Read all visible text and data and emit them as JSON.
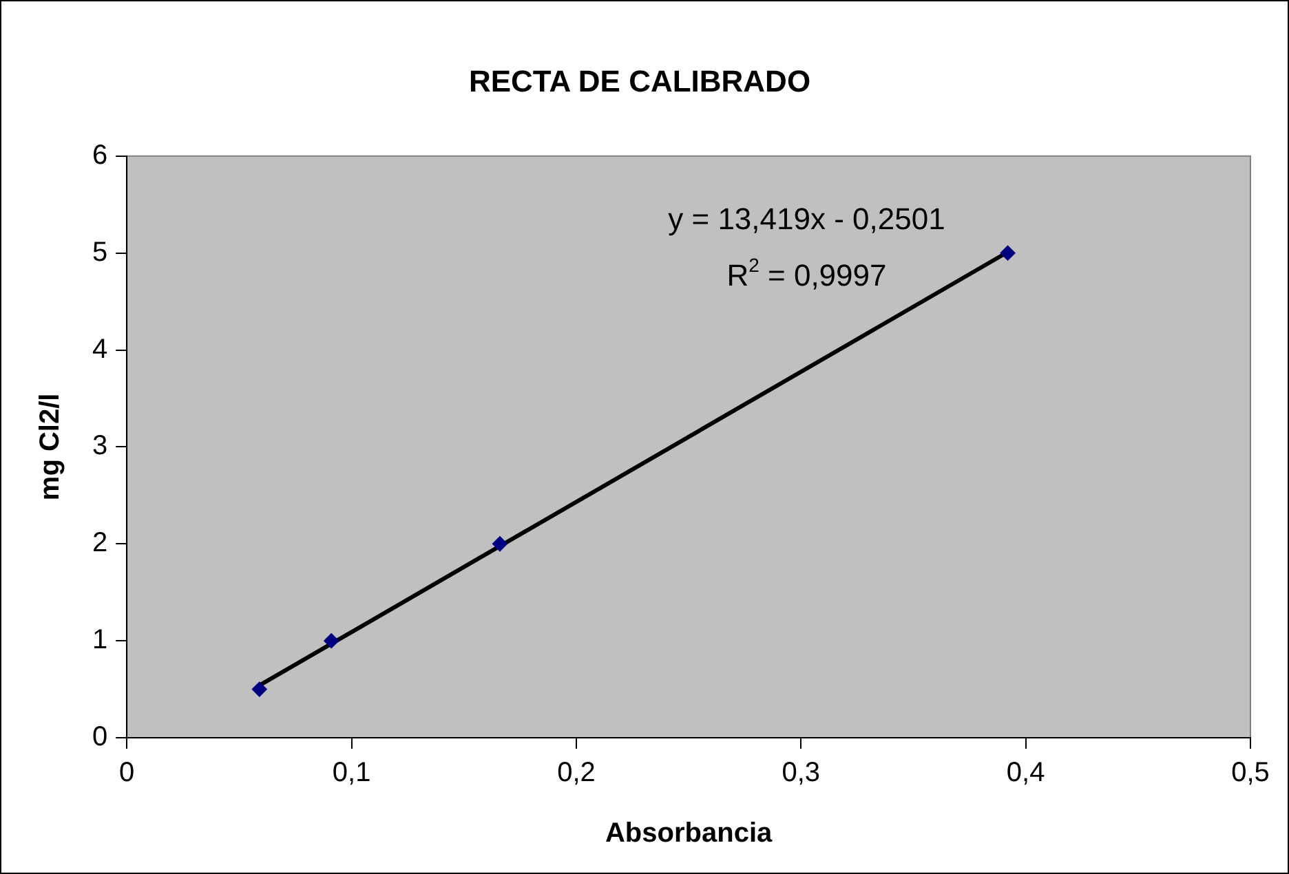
{
  "chart_data": {
    "type": "scatter",
    "title": "RECTA DE CALIBRADO",
    "xlabel": "Absorbancia",
    "ylabel": "mg Cl2/l",
    "series": [
      {
        "type": "scatter",
        "color": "#000080",
        "x": [
          0.059,
          0.091,
          0.166,
          0.392
        ],
        "values": [
          0.5,
          1,
          2,
          5
        ],
        "marker": "diamond"
      },
      {
        "type": "line",
        "color": "#000000",
        "x": [
          0.059,
          0.392
        ],
        "values": [
          0.54,
          5.01
        ],
        "marker": "none"
      }
    ],
    "xlim": [
      0,
      0.5
    ],
    "xticks": [
      0,
      {
        "value": 0.1,
        "label": "0,1"
      },
      {
        "value": 0.2,
        "label": "0,2"
      },
      {
        "value": 0.3,
        "label": "0,3"
      },
      {
        "value": 0.4,
        "label": "0,4"
      },
      {
        "value": 0.5,
        "label": "0,5"
      }
    ],
    "ylim": [
      0,
      6
    ],
    "yticks": [
      0,
      1,
      2,
      3,
      4,
      5,
      6
    ],
    "annotations": [
      "y = 13,419x - 0,2501",
      "R$^{2}$ = 0,9997"
    ],
    "grid": false,
    "legend": false
  }
}
